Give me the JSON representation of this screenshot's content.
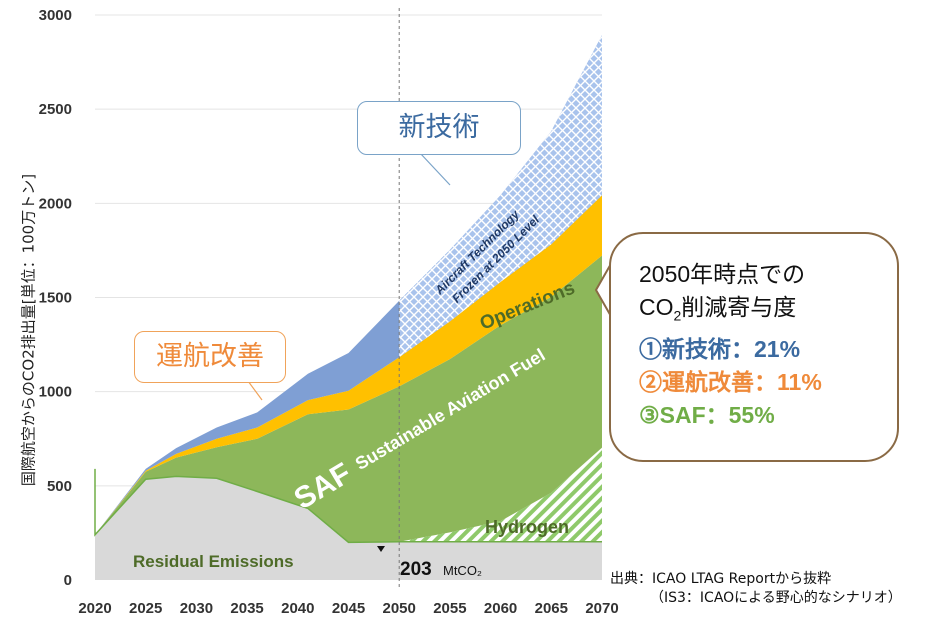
{
  "chart_data": {
    "type": "area",
    "title": "",
    "ylabel": "国際航空からのCO2排出量[単位：100万トン]",
    "xlabel": "",
    "ylim": [
      0,
      3000
    ],
    "yticks": [
      0,
      500,
      1000,
      1500,
      2000,
      2500,
      3000
    ],
    "xticks": [
      2020,
      2025,
      2030,
      2035,
      2040,
      2045,
      2050,
      2055,
      2060,
      2065,
      2070
    ],
    "x": [
      2019,
      2020,
      2025,
      2028,
      2032,
      2036,
      2041,
      2045,
      2050,
      2055,
      2060,
      2065,
      2070
    ],
    "series": [
      {
        "name": "Residual Emissions",
        "color": "#d9d9d9",
        "values": [
          590,
          240,
          535,
          550,
          540,
          470,
          380,
          200,
          203,
          203,
          203,
          203,
          203
        ]
      },
      {
        "name": "Hydrogen",
        "color": "#70ad47",
        "values": [
          0,
          0,
          0,
          0,
          0,
          0,
          0,
          0,
          0,
          50,
          110,
          260,
          500
        ]
      },
      {
        "name": "SAF",
        "color": "#8db75a",
        "values": [
          0,
          0,
          40,
          100,
          165,
          280,
          500,
          705,
          825,
          920,
          1040,
          1040,
          1020
        ]
      },
      {
        "name": "Operations",
        "color": "#ffc000",
        "values": [
          0,
          0,
          5,
          20,
          45,
          60,
          75,
          100,
          155,
          200,
          230,
          280,
          320
        ]
      },
      {
        "name": "Aircraft Technology",
        "color": "#7f9fd4",
        "values": [
          0,
          0,
          10,
          30,
          60,
          80,
          140,
          200,
          300,
          380,
          460,
          600,
          850
        ]
      }
    ],
    "vline_year": 2050,
    "annotations": {
      "residual": "Residual Emissions",
      "hydrogen": "Hydrogen",
      "saf_big": "SAF",
      "saf_long": "Sustainable Aviation Fuel",
      "operations": "Operations",
      "tech_1": "Aircraft Technology",
      "tech_2": "Frozen at 2050 Level",
      "residual_value": "203",
      "residual_unit": "MtCO₂"
    }
  },
  "callouts": {
    "tech": "新技術",
    "ops": "運航改善"
  },
  "summary": {
    "line1": "2050年時点での",
    "line2_pre": "CO",
    "line2_sub": "2",
    "line2_post": "削減寄与度",
    "tech": "①新技術：21%",
    "ops": "②運航改善：11%",
    "saf": "③SAF：55%"
  },
  "source": {
    "line1": "出典：ICAO LTAG Reportから抜粋",
    "line2": "（IS3：ICAOによる野心的なシナリオ）"
  },
  "colors": {
    "residual": "#d9d9d9",
    "saf": "#8db75a",
    "ops": "#ffc000",
    "tech": "#7f9fd4",
    "hydrogen": "#70ad47",
    "residual_text": "#4e6b28",
    "saf_text": "#ffffff",
    "ops_text": "#4e6b28",
    "tech_text": "#1f3864"
  }
}
